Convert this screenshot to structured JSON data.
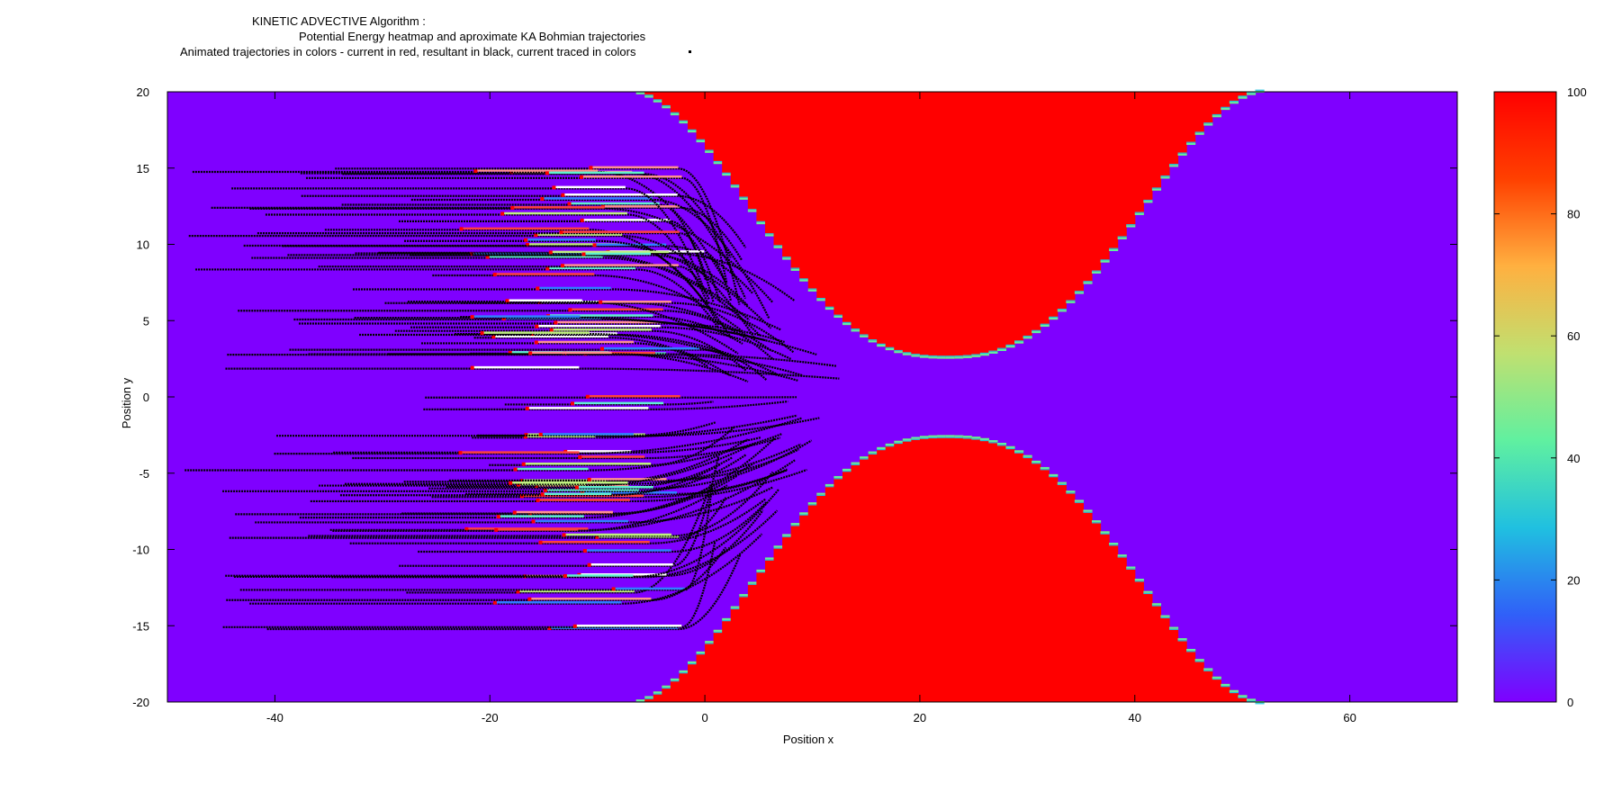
{
  "title_lines": [
    "KINETIC ADVECTIVE Algorithm :",
    "Potential Energy heatmap and aproximate KA Bohmian trajectories",
    "Animated trajectories in colors - current in red, resultant in black, current traced in colors"
  ],
  "chart_data": {
    "type": "heatmap",
    "xlabel": "Position x",
    "ylabel": "Position y",
    "xlim": [
      -50,
      70
    ],
    "ylim": [
      -20,
      20
    ],
    "x_ticks": [
      -40,
      -20,
      0,
      20,
      40,
      60
    ],
    "y_ticks": [
      -20,
      -15,
      -10,
      -5,
      0,
      5,
      10,
      15,
      20
    ],
    "colorbar": {
      "range": [
        0,
        100
      ],
      "ticks": [
        0,
        20,
        40,
        60,
        80,
        100
      ],
      "palette": [
        "#7f00ff",
        "#3060f8",
        "#20c0e0",
        "#60f0a0",
        "#c0e070",
        "#ffb040",
        "#ff4000",
        "#ff0000"
      ]
    },
    "potential": {
      "description_values": "two red barrier regions (value 100) forming a channel, purple background (value 0)",
      "low_value": 0,
      "high_value": 100,
      "barrier_x_range": [
        -8,
        52
      ],
      "channel_center_x": 22.5,
      "channel_half_width_min": 2.5,
      "channel_half_width_max": 20
    },
    "trajectories": {
      "start_x_range": [
        -49,
        -16
      ],
      "end_x_range": [
        0,
        15
      ],
      "y_range": [
        -15.5,
        15.5
      ],
      "count": 90
    }
  },
  "colors": {
    "background": "#7f00ff",
    "barrier": "#ff0000",
    "trajectory": "#000000",
    "current": "#ff0000"
  }
}
